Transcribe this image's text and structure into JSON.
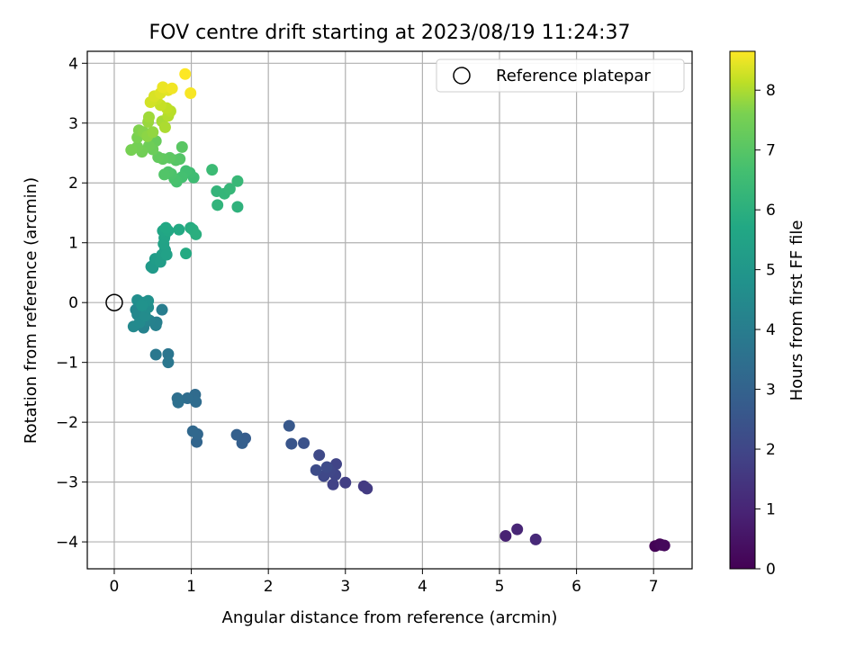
{
  "chart_data": {
    "type": "scatter",
    "title": "FOV centre drift starting at 2023/08/19 11:24:37",
    "xlabel": "Angular distance from reference (arcmin)",
    "ylabel": "Rotation from reference (arcmin)",
    "xlim": [
      -0.35,
      7.5
    ],
    "ylim": [
      -4.45,
      4.2
    ],
    "x_ticks": [
      0,
      1,
      2,
      3,
      4,
      5,
      6,
      7
    ],
    "y_ticks": [
      -4,
      -3,
      -2,
      -1,
      0,
      1,
      2,
      3,
      4
    ],
    "grid": true,
    "legend": {
      "position": "top-right",
      "entries": [
        "Reference platepar"
      ]
    },
    "reference_point": {
      "x": 0,
      "y": 0
    },
    "colorbar": {
      "label": "Hours from first FF file",
      "colormap": "viridis",
      "range": [
        0,
        8.65
      ],
      "ticks": [
        0,
        1,
        2,
        3,
        4,
        5,
        6,
        7,
        8
      ]
    },
    "points": [
      {
        "x": 7.02,
        "y": -4.07,
        "c": 0.05
      },
      {
        "x": 7.08,
        "y": -4.04,
        "c": 0.1
      },
      {
        "x": 7.1,
        "y": -4.05,
        "c": 0.15
      },
      {
        "x": 7.14,
        "y": -4.06,
        "c": 0.2
      },
      {
        "x": 5.08,
        "y": -3.9,
        "c": 0.9
      },
      {
        "x": 5.23,
        "y": -3.79,
        "c": 1.0
      },
      {
        "x": 5.47,
        "y": -3.96,
        "c": 1.1
      },
      {
        "x": 3.24,
        "y": -3.07,
        "c": 1.6
      },
      {
        "x": 3.28,
        "y": -3.11,
        "c": 1.65
      },
      {
        "x": 3.0,
        "y": -3.01,
        "c": 1.75
      },
      {
        "x": 2.84,
        "y": -3.04,
        "c": 1.85
      },
      {
        "x": 2.88,
        "y": -2.7,
        "c": 1.9
      },
      {
        "x": 2.87,
        "y": -2.88,
        "c": 1.95
      },
      {
        "x": 2.8,
        "y": -2.82,
        "c": 2.0
      },
      {
        "x": 2.72,
        "y": -2.9,
        "c": 2.05
      },
      {
        "x": 2.66,
        "y": -2.55,
        "c": 2.1
      },
      {
        "x": 2.62,
        "y": -2.8,
        "c": 2.2
      },
      {
        "x": 2.76,
        "y": -2.75,
        "c": 2.15
      },
      {
        "x": 2.46,
        "y": -2.35,
        "c": 2.4
      },
      {
        "x": 2.3,
        "y": -2.36,
        "c": 2.5
      },
      {
        "x": 2.27,
        "y": -2.06,
        "c": 2.6
      },
      {
        "x": 1.7,
        "y": -2.27,
        "c": 2.8
      },
      {
        "x": 1.66,
        "y": -2.35,
        "c": 2.85
      },
      {
        "x": 1.59,
        "y": -2.21,
        "c": 2.9
      },
      {
        "x": 1.07,
        "y": -2.33,
        "c": 3.1
      },
      {
        "x": 1.08,
        "y": -2.2,
        "c": 3.15
      },
      {
        "x": 1.02,
        "y": -2.15,
        "c": 3.2
      },
      {
        "x": 1.05,
        "y": -1.54,
        "c": 3.3
      },
      {
        "x": 1.06,
        "y": -1.66,
        "c": 3.35
      },
      {
        "x": 0.95,
        "y": -1.6,
        "c": 3.4
      },
      {
        "x": 0.82,
        "y": -1.6,
        "c": 3.45
      },
      {
        "x": 0.83,
        "y": -1.67,
        "c": 3.5
      },
      {
        "x": 0.7,
        "y": -0.86,
        "c": 3.7
      },
      {
        "x": 0.7,
        "y": -1.0,
        "c": 3.75
      },
      {
        "x": 0.54,
        "y": -0.87,
        "c": 3.8
      },
      {
        "x": 0.62,
        "y": -0.12,
        "c": 4.0
      },
      {
        "x": 0.55,
        "y": -0.33,
        "c": 4.05
      },
      {
        "x": 0.54,
        "y": -0.38,
        "c": 4.1
      },
      {
        "x": 0.46,
        "y": -0.3,
        "c": 4.15
      },
      {
        "x": 0.38,
        "y": -0.42,
        "c": 4.2
      },
      {
        "x": 0.4,
        "y": -0.3,
        "c": 4.25
      },
      {
        "x": 0.36,
        "y": -0.18,
        "c": 4.3
      },
      {
        "x": 0.28,
        "y": -0.12,
        "c": 4.35
      },
      {
        "x": 0.3,
        "y": -0.2,
        "c": 4.4
      },
      {
        "x": 0.25,
        "y": -0.4,
        "c": 4.45
      },
      {
        "x": 0.33,
        "y": -0.33,
        "c": 4.5
      },
      {
        "x": 0.4,
        "y": -0.22,
        "c": 4.55
      },
      {
        "x": 0.44,
        "y": -0.08,
        "c": 4.6
      },
      {
        "x": 0.3,
        "y": 0.04,
        "c": 4.65
      },
      {
        "x": 0.38,
        "y": 0.0,
        "c": 4.7
      },
      {
        "x": 0.44,
        "y": 0.03,
        "c": 4.75
      },
      {
        "x": 0.36,
        "y": -0.05,
        "c": 4.8
      },
      {
        "x": 0.48,
        "y": 0.6,
        "c": 5.1
      },
      {
        "x": 0.5,
        "y": 0.58,
        "c": 5.15
      },
      {
        "x": 0.53,
        "y": 0.73,
        "c": 5.2
      },
      {
        "x": 0.6,
        "y": 0.68,
        "c": 5.25
      },
      {
        "x": 0.62,
        "y": 0.8,
        "c": 5.3
      },
      {
        "x": 0.66,
        "y": 0.88,
        "c": 5.35
      },
      {
        "x": 0.68,
        "y": 0.8,
        "c": 5.4
      },
      {
        "x": 0.64,
        "y": 0.98,
        "c": 5.45
      },
      {
        "x": 0.65,
        "y": 1.08,
        "c": 5.5
      },
      {
        "x": 0.66,
        "y": 1.14,
        "c": 5.55
      },
      {
        "x": 0.63,
        "y": 1.2,
        "c": 5.6
      },
      {
        "x": 0.7,
        "y": 1.2,
        "c": 5.65
      },
      {
        "x": 0.67,
        "y": 1.25,
        "c": 5.7
      },
      {
        "x": 0.84,
        "y": 1.22,
        "c": 5.75
      },
      {
        "x": 0.93,
        "y": 0.82,
        "c": 5.8
      },
      {
        "x": 0.99,
        "y": 1.25,
        "c": 5.85
      },
      {
        "x": 1.02,
        "y": 1.22,
        "c": 5.9
      },
      {
        "x": 1.06,
        "y": 1.14,
        "c": 5.95
      },
      {
        "x": 1.6,
        "y": 1.6,
        "c": 6.1
      },
      {
        "x": 1.34,
        "y": 1.63,
        "c": 6.15
      },
      {
        "x": 1.33,
        "y": 1.86,
        "c": 6.2
      },
      {
        "x": 1.43,
        "y": 1.82,
        "c": 6.25
      },
      {
        "x": 1.5,
        "y": 1.9,
        "c": 6.3
      },
      {
        "x": 1.6,
        "y": 2.03,
        "c": 6.35
      },
      {
        "x": 1.27,
        "y": 2.22,
        "c": 6.45
      },
      {
        "x": 1.03,
        "y": 2.09,
        "c": 6.5
      },
      {
        "x": 0.98,
        "y": 2.17,
        "c": 6.55
      },
      {
        "x": 0.93,
        "y": 2.2,
        "c": 6.6
      },
      {
        "x": 0.88,
        "y": 2.1,
        "c": 6.65
      },
      {
        "x": 0.81,
        "y": 2.02,
        "c": 6.7
      },
      {
        "x": 0.78,
        "y": 2.07,
        "c": 6.75
      },
      {
        "x": 0.74,
        "y": 2.15,
        "c": 6.8
      },
      {
        "x": 0.7,
        "y": 2.18,
        "c": 6.85
      },
      {
        "x": 0.65,
        "y": 2.14,
        "c": 6.9
      },
      {
        "x": 0.85,
        "y": 2.4,
        "c": 6.95
      },
      {
        "x": 0.8,
        "y": 2.38,
        "c": 7.0
      },
      {
        "x": 0.88,
        "y": 2.6,
        "c": 7.05
      },
      {
        "x": 0.72,
        "y": 2.42,
        "c": 7.1
      },
      {
        "x": 0.63,
        "y": 2.4,
        "c": 7.15
      },
      {
        "x": 0.57,
        "y": 2.43,
        "c": 7.2
      },
      {
        "x": 0.54,
        "y": 2.7,
        "c": 7.3
      },
      {
        "x": 0.5,
        "y": 2.56,
        "c": 7.35
      },
      {
        "x": 0.45,
        "y": 2.62,
        "c": 7.4
      },
      {
        "x": 0.36,
        "y": 2.52,
        "c": 7.45
      },
      {
        "x": 0.3,
        "y": 2.6,
        "c": 7.5
      },
      {
        "x": 0.22,
        "y": 2.55,
        "c": 7.55
      },
      {
        "x": 0.3,
        "y": 2.76,
        "c": 7.6
      },
      {
        "x": 0.32,
        "y": 2.88,
        "c": 7.65
      },
      {
        "x": 0.38,
        "y": 2.85,
        "c": 7.7
      },
      {
        "x": 0.43,
        "y": 2.78,
        "c": 7.75
      },
      {
        "x": 0.5,
        "y": 2.85,
        "c": 7.8
      },
      {
        "x": 0.44,
        "y": 3.02,
        "c": 7.85
      },
      {
        "x": 0.45,
        "y": 3.1,
        "c": 7.9
      },
      {
        "x": 0.62,
        "y": 3.03,
        "c": 7.95
      },
      {
        "x": 0.66,
        "y": 2.93,
        "c": 8.0
      },
      {
        "x": 0.7,
        "y": 3.12,
        "c": 8.05
      },
      {
        "x": 0.73,
        "y": 3.2,
        "c": 8.1
      },
      {
        "x": 0.68,
        "y": 3.25,
        "c": 8.15
      },
      {
        "x": 0.6,
        "y": 3.3,
        "c": 8.2
      },
      {
        "x": 0.55,
        "y": 3.4,
        "c": 8.25
      },
      {
        "x": 0.47,
        "y": 3.35,
        "c": 8.3
      },
      {
        "x": 0.52,
        "y": 3.45,
        "c": 8.35
      },
      {
        "x": 0.6,
        "y": 3.5,
        "c": 8.4
      },
      {
        "x": 0.7,
        "y": 3.55,
        "c": 8.45
      },
      {
        "x": 0.63,
        "y": 3.6,
        "c": 8.5
      },
      {
        "x": 0.75,
        "y": 3.58,
        "c": 8.55
      },
      {
        "x": 0.99,
        "y": 3.5,
        "c": 8.6
      },
      {
        "x": 0.92,
        "y": 3.82,
        "c": 8.65
      }
    ]
  }
}
